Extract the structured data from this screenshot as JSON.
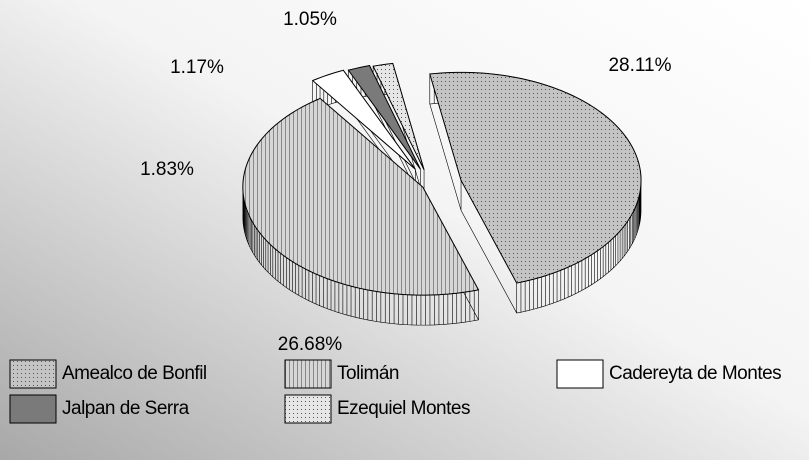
{
  "chart_data": {
    "type": "pie",
    "categories": [
      "Amealco de Bonfil",
      "Tolimán",
      "Cadereyta de Montes",
      "Jalpan de Serra",
      "Ezequiel Montes"
    ],
    "values": [
      28.11,
      26.68,
      1.83,
      1.17,
      1.05
    ],
    "value_labels": [
      "28.11%",
      "26.68%",
      "1.83%",
      "1.17%",
      "1.05%"
    ],
    "colors": [
      "#c4c4c4",
      "#d6d6d6",
      "#ffffff",
      "#7a7a7a",
      "#e6e6e6"
    ]
  }
}
